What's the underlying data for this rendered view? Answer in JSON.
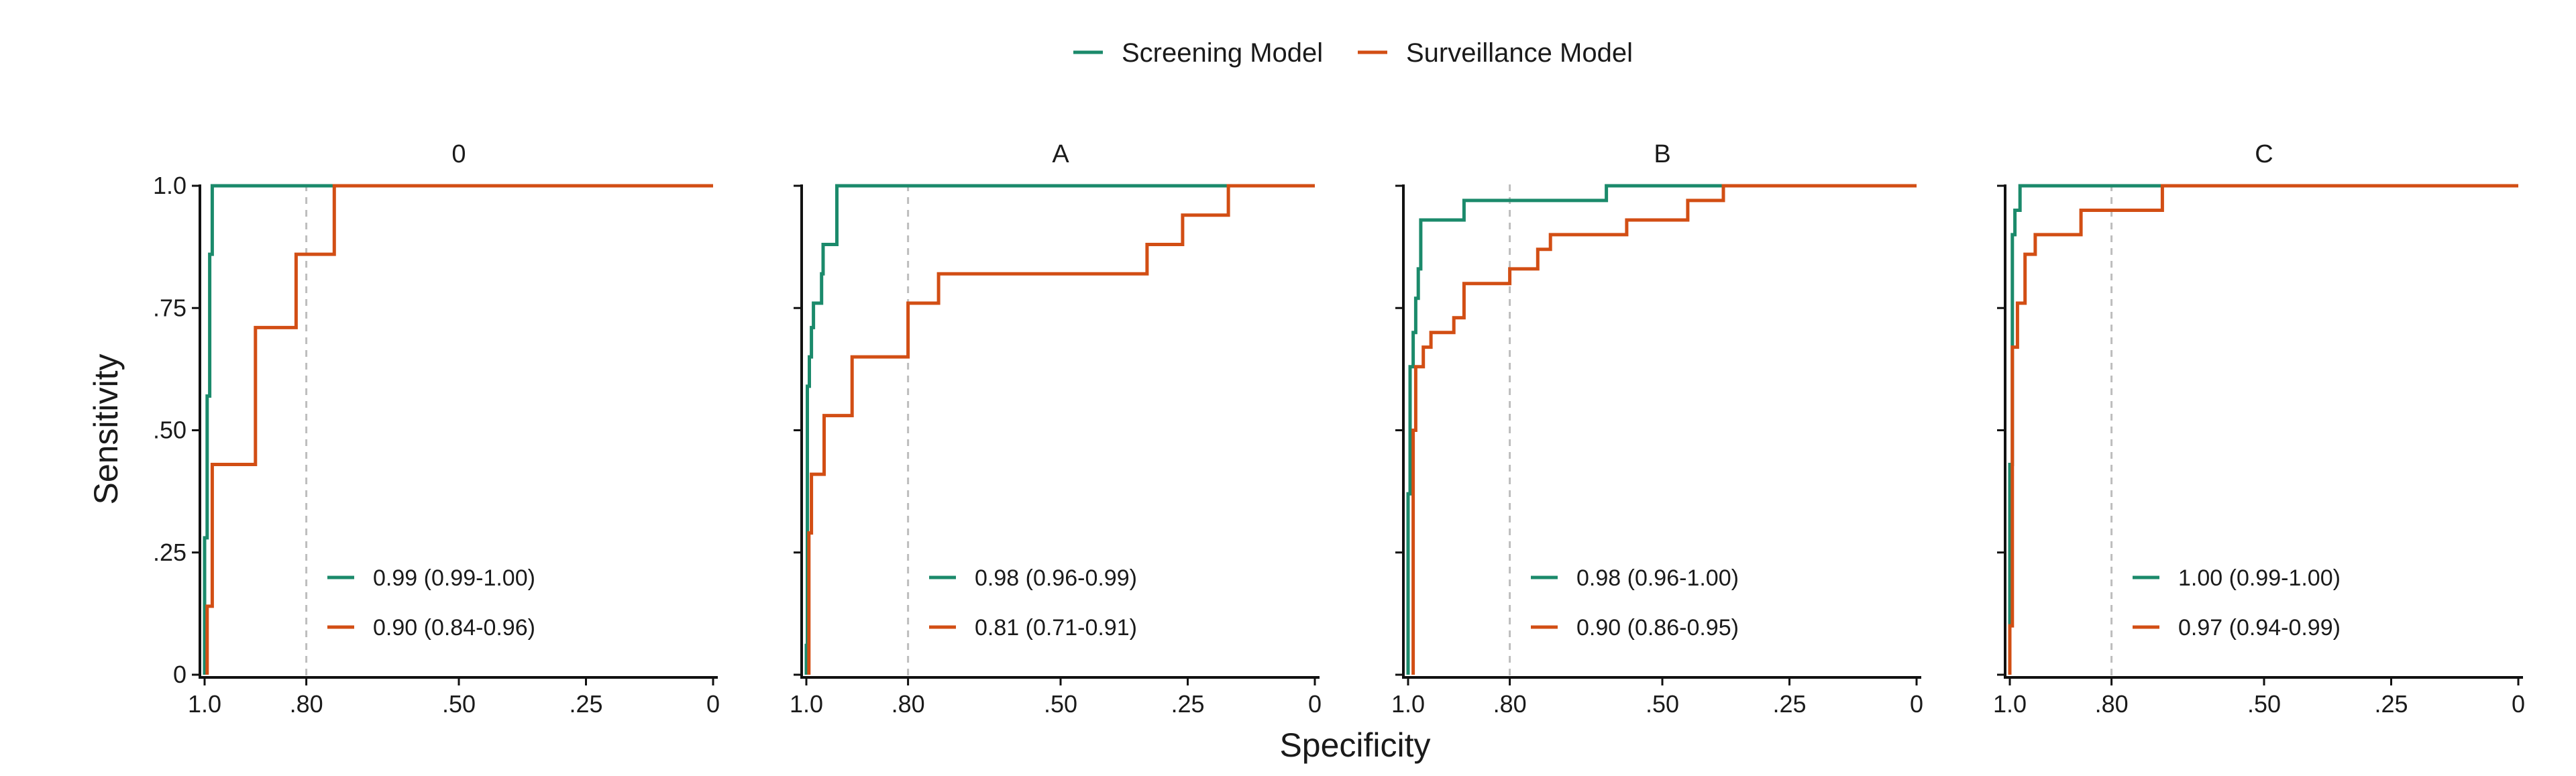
{
  "legend": {
    "position": "top",
    "items": [
      {
        "label": "Screening Model",
        "color": "#1b8a6b"
      },
      {
        "label": "Surveillance Model",
        "color": "#d24e14"
      }
    ]
  },
  "axis_titles": {
    "x": "Specificity",
    "y": "Sensitivity"
  },
  "chart_data": {
    "type": "line",
    "layout": "facets-4-columns",
    "x_axis": {
      "label": "Specificity",
      "reversed": true,
      "range": [
        1.0,
        0.0
      ],
      "ticks": [
        1.0,
        0.8,
        0.5,
        0.25,
        0.0
      ],
      "tick_labels": [
        "1.0",
        ".80",
        ".50",
        ".25",
        "0"
      ]
    },
    "y_axis": {
      "label": "Sensitivity",
      "range": [
        0,
        1.0
      ],
      "ticks": [
        0,
        0.25,
        0.5,
        0.75,
        1.0
      ],
      "tick_labels": [
        "0",
        ".25",
        ".50",
        ".75",
        "1.0"
      ]
    },
    "reference_line": {
      "specificity": 0.8,
      "style": "dashed",
      "color": "#bdbdbd"
    },
    "grid": false,
    "facets": [
      {
        "title": "0",
        "series": [
          {
            "name": "Screening Model",
            "auc_label": "0.99 (0.99-1.00)",
            "points": [
              [
                1,
                0
              ],
              [
                1,
                0.28
              ],
              [
                0.995,
                0.28
              ],
              [
                0.995,
                0.57
              ],
              [
                0.99,
                0.57
              ],
              [
                0.99,
                0.86
              ],
              [
                0.985,
                0.86
              ],
              [
                0.985,
                1
              ],
              [
                0,
                1
              ]
            ]
          },
          {
            "name": "Surveillance Model",
            "auc_label": "0.90 (0.84-0.96)",
            "points": [
              [
                0.995,
                0
              ],
              [
                0.995,
                0.14
              ],
              [
                0.985,
                0.14
              ],
              [
                0.985,
                0.43
              ],
              [
                0.9,
                0.43
              ],
              [
                0.9,
                0.71
              ],
              [
                0.82,
                0.71
              ],
              [
                0.82,
                0.86
              ],
              [
                0.745,
                0.86
              ],
              [
                0.745,
                1
              ],
              [
                0,
                1
              ]
            ]
          }
        ]
      },
      {
        "title": "A",
        "series": [
          {
            "name": "Screening Model",
            "auc_label": "0.98 (0.96-0.99)",
            "points": [
              [
                1,
                0
              ],
              [
                1,
                0.06
              ],
              [
                0.998,
                0.06
              ],
              [
                0.998,
                0.59
              ],
              [
                0.994,
                0.59
              ],
              [
                0.994,
                0.65
              ],
              [
                0.99,
                0.65
              ],
              [
                0.99,
                0.71
              ],
              [
                0.986,
                0.71
              ],
              [
                0.986,
                0.76
              ],
              [
                0.97,
                0.76
              ],
              [
                0.97,
                0.82
              ],
              [
                0.967,
                0.82
              ],
              [
                0.967,
                0.88
              ],
              [
                0.94,
                0.88
              ],
              [
                0.94,
                1
              ],
              [
                0,
                1
              ]
            ]
          },
          {
            "name": "Surveillance Model",
            "auc_label": "0.81 (0.71-0.91)",
            "points": [
              [
                0.995,
                0
              ],
              [
                0.995,
                0.29
              ],
              [
                0.99,
                0.29
              ],
              [
                0.99,
                0.41
              ],
              [
                0.965,
                0.41
              ],
              [
                0.965,
                0.53
              ],
              [
                0.91,
                0.53
              ],
              [
                0.91,
                0.65
              ],
              [
                0.8,
                0.65
              ],
              [
                0.8,
                0.76
              ],
              [
                0.74,
                0.76
              ],
              [
                0.74,
                0.82
              ],
              [
                0.33,
                0.82
              ],
              [
                0.33,
                0.88
              ],
              [
                0.26,
                0.88
              ],
              [
                0.26,
                0.94
              ],
              [
                0.17,
                0.94
              ],
              [
                0.17,
                1
              ],
              [
                0,
                1
              ]
            ]
          }
        ]
      },
      {
        "title": "B",
        "series": [
          {
            "name": "Screening Model",
            "auc_label": "0.98 (0.96-1.00)",
            "points": [
              [
                1,
                0
              ],
              [
                1,
                0.37
              ],
              [
                0.996,
                0.37
              ],
              [
                0.996,
                0.63
              ],
              [
                0.99,
                0.63
              ],
              [
                0.99,
                0.7
              ],
              [
                0.985,
                0.7
              ],
              [
                0.985,
                0.77
              ],
              [
                0.98,
                0.77
              ],
              [
                0.98,
                0.83
              ],
              [
                0.975,
                0.83
              ],
              [
                0.975,
                0.93
              ],
              [
                0.89,
                0.93
              ],
              [
                0.89,
                0.97
              ],
              [
                0.61,
                0.97
              ],
              [
                0.61,
                1
              ],
              [
                0,
                1
              ]
            ]
          },
          {
            "name": "Surveillance Model",
            "auc_label": "0.90 (0.86-0.95)",
            "points": [
              [
                0.99,
                0
              ],
              [
                0.99,
                0.5
              ],
              [
                0.985,
                0.5
              ],
              [
                0.985,
                0.63
              ],
              [
                0.97,
                0.63
              ],
              [
                0.97,
                0.67
              ],
              [
                0.955,
                0.67
              ],
              [
                0.955,
                0.7
              ],
              [
                0.91,
                0.7
              ],
              [
                0.91,
                0.73
              ],
              [
                0.89,
                0.73
              ],
              [
                0.89,
                0.8
              ],
              [
                0.8,
                0.8
              ],
              [
                0.8,
                0.83
              ],
              [
                0.745,
                0.83
              ],
              [
                0.745,
                0.87
              ],
              [
                0.72,
                0.87
              ],
              [
                0.72,
                0.9
              ],
              [
                0.57,
                0.9
              ],
              [
                0.57,
                0.93
              ],
              [
                0.45,
                0.93
              ],
              [
                0.45,
                0.97
              ],
              [
                0.38,
                0.97
              ],
              [
                0.38,
                1
              ],
              [
                0,
                1
              ]
            ]
          }
        ]
      },
      {
        "title": "C",
        "series": [
          {
            "name": "Screening Model",
            "auc_label": "1.00 (0.99-1.00)",
            "points": [
              [
                1,
                0
              ],
              [
                1,
                0.43
              ],
              [
                0.995,
                0.43
              ],
              [
                0.995,
                0.9
              ],
              [
                0.99,
                0.9
              ],
              [
                0.99,
                0.95
              ],
              [
                0.98,
                0.95
              ],
              [
                0.98,
                1
              ],
              [
                0,
                1
              ]
            ]
          },
          {
            "name": "Surveillance Model",
            "auc_label": "0.97 (0.94-0.99)",
            "points": [
              [
                1,
                0
              ],
              [
                1,
                0.1
              ],
              [
                0.995,
                0.1
              ],
              [
                0.995,
                0.67
              ],
              [
                0.985,
                0.67
              ],
              [
                0.985,
                0.76
              ],
              [
                0.97,
                0.76
              ],
              [
                0.97,
                0.86
              ],
              [
                0.95,
                0.86
              ],
              [
                0.95,
                0.9
              ],
              [
                0.86,
                0.9
              ],
              [
                0.86,
                0.95
              ],
              [
                0.7,
                0.95
              ],
              [
                0.7,
                1
              ],
              [
                0,
                1
              ]
            ]
          }
        ]
      }
    ]
  }
}
